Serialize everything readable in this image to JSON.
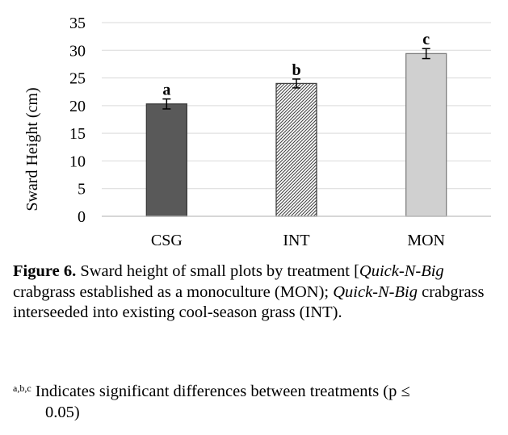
{
  "chart_data": {
    "type": "bar",
    "categories": [
      "CSG",
      "INT",
      "MON"
    ],
    "values": [
      20.3,
      24.0,
      29.4
    ],
    "errors": [
      0.9,
      0.8,
      0.9
    ],
    "significance": [
      "a",
      "b",
      "c"
    ],
    "ylabel": "Sward Height (cm)",
    "xlabel": "",
    "ylim": [
      0,
      35
    ],
    "yticks": [
      "0",
      "5",
      "10",
      "15",
      "20",
      "25",
      "30",
      "35"
    ],
    "grid": true,
    "bar_colors": [
      "#595959",
      "hatched",
      "#d0d0d0"
    ]
  },
  "caption": {
    "label": "Figure 6.",
    "t1": " Sward height of small plots by treatment [",
    "i1": "Quick-N-Big",
    "t2": " crabgrass established as a monoculture (MON); ",
    "i2": "Quick-N-Big",
    "t3": " crabgrass interseeded into existing cool-season grass (INT)."
  },
  "footnote": {
    "marker": "a,b,c",
    "line1": " Indicates significant differences between treatments (p ≤",
    "line2": "0.05)"
  }
}
